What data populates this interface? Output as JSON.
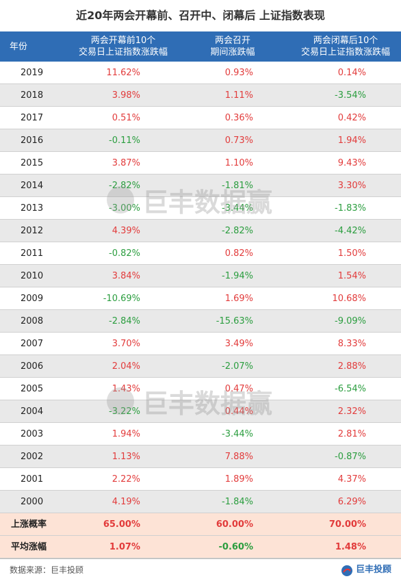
{
  "title": "近20年两会开幕前、召开中、闭幕后 上证指数表现",
  "table": {
    "header": [
      [
        "年份"
      ],
      [
        "两会开幕前10个",
        "交易日上证指数涨跌幅"
      ],
      [
        "两会召开",
        "期间涨跌幅"
      ],
      [
        "两会闭幕后10个",
        "交易日上证指数涨跌幅"
      ]
    ],
    "rows": [
      [
        "2019",
        "11.62%",
        "0.93%",
        "0.14%"
      ],
      [
        "2018",
        "3.98%",
        "1.11%",
        "-3.54%"
      ],
      [
        "2017",
        "0.51%",
        "0.36%",
        "0.42%"
      ],
      [
        "2016",
        "-0.11%",
        "0.73%",
        "1.94%"
      ],
      [
        "2015",
        "3.87%",
        "1.10%",
        "9.43%"
      ],
      [
        "2014",
        "-2.82%",
        "-1.81%",
        "3.30%"
      ],
      [
        "2013",
        "-3.00%",
        "-3.44%",
        "-1.83%"
      ],
      [
        "2012",
        "4.39%",
        "-2.82%",
        "-4.42%"
      ],
      [
        "2011",
        "-0.82%",
        "0.82%",
        "1.50%"
      ],
      [
        "2010",
        "3.84%",
        "-1.94%",
        "1.54%"
      ],
      [
        "2009",
        "-10.69%",
        "1.69%",
        "10.68%"
      ],
      [
        "2008",
        "-2.84%",
        "-15.63%",
        "-9.09%"
      ],
      [
        "2007",
        "3.70%",
        "3.49%",
        "8.33%"
      ],
      [
        "2006",
        "2.04%",
        "-2.07%",
        "2.88%"
      ],
      [
        "2005",
        "1.43%",
        "0.47%",
        "-6.54%"
      ],
      [
        "2004",
        "-3.22%",
        "0.44%",
        "2.32%"
      ],
      [
        "2003",
        "1.94%",
        "-3.44%",
        "2.81%"
      ],
      [
        "2002",
        "1.13%",
        "7.88%",
        "-0.87%"
      ],
      [
        "2001",
        "2.22%",
        "1.89%",
        "4.37%"
      ],
      [
        "2000",
        "4.19%",
        "-1.84%",
        "6.29%"
      ]
    ],
    "summary": [
      [
        "上涨概率",
        "65.00%",
        "60.00%",
        "70.00%"
      ],
      [
        "平均涨幅",
        "1.07%",
        "-0.60%",
        "1.48%"
      ]
    ]
  },
  "watermarks": [
    "巨丰数据赢",
    "巨丰数据赢"
  ],
  "footer": {
    "source": "数据来源：巨丰投顾",
    "logo": "巨丰投顾"
  }
}
